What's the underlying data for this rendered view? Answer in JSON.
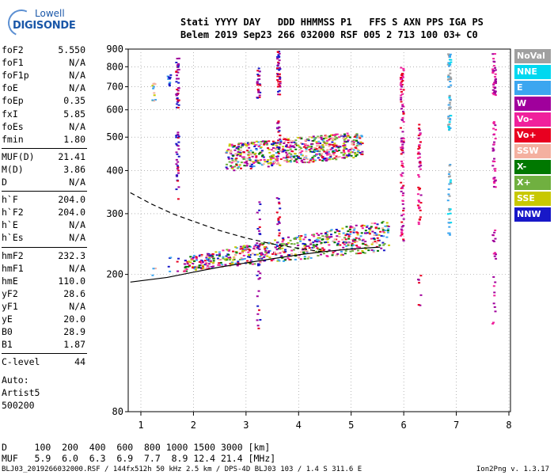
{
  "logo": {
    "line1": "Lowell",
    "line2": "DIGISONDE"
  },
  "header": {
    "labels": "Stati YYYY DAY   DDD HHMMSS P1   FFS S AXN PPS IGA PS",
    "values": "Belem 2019 Sep23 266 032000 RSF 005 2 713 100 03+ C0"
  },
  "params": {
    "group1": [
      {
        "name": "foF2",
        "value": "5.550"
      },
      {
        "name": "foF1",
        "value": "N/A"
      },
      {
        "name": "foF1p",
        "value": "N/A"
      },
      {
        "name": "foE",
        "value": "N/A"
      },
      {
        "name": "foEp",
        "value": "0.35"
      },
      {
        "name": "fxI",
        "value": "5.85"
      },
      {
        "name": "foEs",
        "value": "N/A"
      },
      {
        "name": "fmin",
        "value": "1.80"
      }
    ],
    "group2": [
      {
        "name": "MUF(D)",
        "value": "21.41"
      },
      {
        "name": "M(D)",
        "value": "3.86"
      },
      {
        "name": "D",
        "value": "N/A"
      }
    ],
    "group3": [
      {
        "name": "h`F",
        "value": "204.0"
      },
      {
        "name": "h`F2",
        "value": "204.0"
      },
      {
        "name": "h`E",
        "value": "N/A"
      },
      {
        "name": "h`Es",
        "value": "N/A"
      }
    ],
    "group4": [
      {
        "name": "hmF2",
        "value": "232.3"
      },
      {
        "name": "hmF1",
        "value": "N/A"
      },
      {
        "name": "hmE",
        "value": "110.0"
      },
      {
        "name": "yF2",
        "value": "28.6"
      },
      {
        "name": "yF1",
        "value": "N/A"
      },
      {
        "name": "yE",
        "value": "20.0"
      },
      {
        "name": "B0",
        "value": "28.9"
      },
      {
        "name": "B1",
        "value": "1.87"
      }
    ],
    "group5": [
      {
        "name": "C-level",
        "value": "44"
      }
    ]
  },
  "auto_text": "Auto:\nArtist5\n500200",
  "legend": [
    {
      "label": "NoVal",
      "color": "#a0a0a0"
    },
    {
      "label": "NNE",
      "color": "#00d8f0"
    },
    {
      "label": "E",
      "color": "#3ca6f0"
    },
    {
      "label": "W",
      "color": "#a0009c"
    },
    {
      "label": "Vo-",
      "color": "#f0209c"
    },
    {
      "label": "Vo+",
      "color": "#e80020"
    },
    {
      "label": "SSW",
      "color": "#f4b0a0"
    },
    {
      "label": "X-",
      "color": "#007800"
    },
    {
      "label": "X+",
      "color": "#70b040"
    },
    {
      "label": "SSE",
      "color": "#c8c800"
    },
    {
      "label": "NNW",
      "color": "#1818c8"
    }
  ],
  "footer": {
    "line1": "D     100  200  400  600  800 1000 1500 3000 [km]",
    "line2": "MUF   5.9  6.0  6.3  6.9  7.7  8.9 12.4 21.4 [MHz]",
    "line3": "BLJ03_2019266032000.RSF / 144fx512h 50 kHz 2.5 km / DPS-4D BLJ03 103 / 1.4 S 311.6 E",
    "version": "Ion2Png v. 1.3.17"
  },
  "chart_data": {
    "type": "scatter",
    "title": "",
    "xlabel": "",
    "ylabel": "",
    "xlim": [
      0.8,
      8.0
    ],
    "ylim": [
      80,
      900
    ],
    "yscale": "log",
    "x_ticks": [
      1,
      2,
      3,
      4,
      5,
      6,
      7,
      8
    ],
    "y_ticks": [
      80,
      200,
      300,
      400,
      500,
      600,
      700,
      800,
      900
    ],
    "grid": "dotted",
    "trace_series": [
      {
        "style": "dashed",
        "x": [
          0.8,
          1.2,
          1.6,
          2.0,
          2.5,
          3.0,
          3.5,
          4.0,
          4.5
        ],
        "y": [
          345,
          320,
          300,
          285,
          268,
          255,
          245,
          238,
          232
        ]
      },
      {
        "style": "solid",
        "x": [
          0.8,
          1.5,
          2.0,
          2.5,
          3.0,
          3.5,
          4.0,
          4.5,
          5.0,
          5.55
        ],
        "y": [
          190,
          196,
          203,
          210,
          216,
          222,
          228,
          233,
          237,
          240
        ]
      }
    ],
    "echo_columns": [
      {
        "x": 1.23,
        "ranges": [
          [
            640,
            720
          ],
          [
            195,
            215
          ]
        ],
        "colors": [
          "#3ca6f0",
          "#c8c800",
          "#f4b0a0"
        ]
      },
      {
        "x": 1.52,
        "ranges": [
          [
            700,
            770
          ],
          [
            205,
            230
          ]
        ],
        "colors": [
          "#3ca6f0",
          "#1818c8"
        ]
      },
      {
        "x": 1.68,
        "ranges": [
          [
            330,
            520
          ],
          [
            610,
            850
          ],
          [
            205,
            225
          ]
        ],
        "colors": [
          "#1818c8",
          "#e80020",
          "#a0009c"
        ]
      },
      {
        "x": 3.22,
        "ranges": [
          [
            140,
            330
          ],
          [
            650,
            800
          ]
        ],
        "colors": [
          "#1818c8",
          "#a0009c",
          "#e80020"
        ]
      },
      {
        "x": 3.6,
        "ranges": [
          [
            660,
            900
          ],
          [
            240,
            340
          ],
          [
            440,
            560
          ]
        ],
        "colors": [
          "#1818c8",
          "#e80020",
          "#a0009c"
        ]
      },
      {
        "x": 5.95,
        "ranges": [
          [
            250,
            800
          ]
        ],
        "colors": [
          "#e80020",
          "#a0009c",
          "#f0209c"
        ]
      },
      {
        "x": 6.28,
        "ranges": [
          [
            280,
            560
          ],
          [
            160,
            200
          ]
        ],
        "colors": [
          "#a0009c",
          "#f0209c",
          "#e80020"
        ]
      },
      {
        "x": 6.85,
        "ranges": [
          [
            260,
            420
          ],
          [
            520,
            880
          ]
        ],
        "colors": [
          "#3ca6f0",
          "#00d8f0",
          "#a0a0a0"
        ]
      },
      {
        "x": 7.7,
        "ranges": [
          [
            140,
            270
          ],
          [
            360,
            560
          ],
          [
            660,
            880
          ]
        ],
        "colors": [
          "#a0009c",
          "#f0209c"
        ]
      }
    ],
    "echo_bands": [
      {
        "x": [
          1.8,
          5.7
        ],
        "y_start": [
          205,
          225
        ],
        "y_end": [
          235,
          290
        ],
        "colors": [
          "#e80020",
          "#f0209c",
          "#a0009c",
          "#1818c8",
          "#007800",
          "#70b040",
          "#3ca6f0",
          "#c8c800",
          "#f4b0a0"
        ]
      },
      {
        "x": [
          2.6,
          5.2
        ],
        "y_start": [
          400,
          480
        ],
        "y_end": [
          440,
          520
        ],
        "colors": [
          "#e80020",
          "#f0209c",
          "#a0009c",
          "#1818c8",
          "#007800",
          "#70b040",
          "#3ca6f0",
          "#c8c800",
          "#f4b0a0"
        ]
      }
    ]
  }
}
